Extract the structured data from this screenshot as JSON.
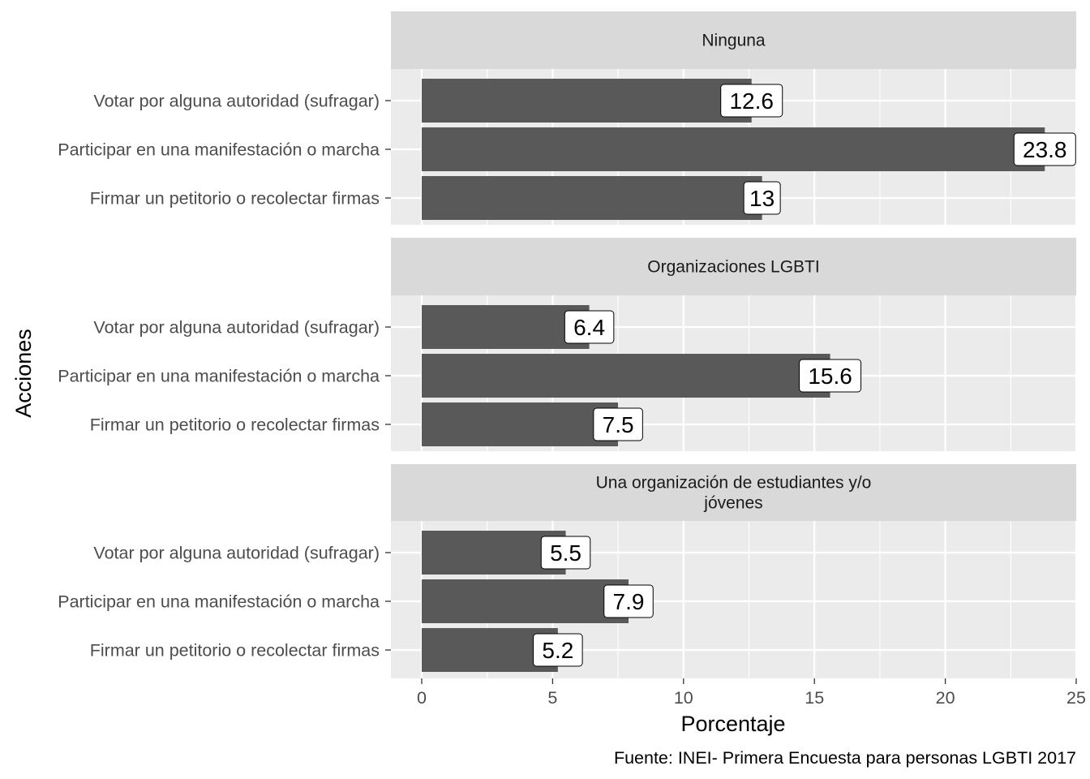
{
  "chart_data": {
    "type": "bar",
    "orientation": "horizontal",
    "facet_by": "panels",
    "categories": [
      "Votar por alguna autoridad (sufragar)",
      "Participar en una manifestación o marcha",
      "Firmar un petitorio o recolectar firmas"
    ],
    "panels": [
      {
        "label_lines": [
          "Ninguna"
        ],
        "values": [
          12.6,
          23.8,
          13
        ]
      },
      {
        "label_lines": [
          "Organizaciones LGBTI"
        ],
        "values": [
          6.4,
          15.6,
          7.5
        ]
      },
      {
        "label_lines": [
          "Una organización de estudiantes y/o",
          "jóvenes"
        ],
        "values": [
          5.5,
          7.9,
          5.2
        ]
      }
    ],
    "data_labels": [
      [
        "12.6",
        "23.8",
        "13"
      ],
      [
        "6.4",
        "15.6",
        "7.5"
      ],
      [
        "5.5",
        "7.9",
        "5.2"
      ]
    ],
    "xlabel": "Porcentaje",
    "ylabel": "Acciones",
    "xlim": [
      0,
      25
    ],
    "x_ticks": [
      0,
      5,
      10,
      15,
      20,
      25
    ],
    "grid": true,
    "caption": "Fuente: INEI- Primera Encuesta para personas LGBTI 2017",
    "colors": {
      "bar": "#595959",
      "panel_background": "#ebebeb",
      "strip_background": "#d9d9d9",
      "grid": "#ffffff"
    }
  }
}
